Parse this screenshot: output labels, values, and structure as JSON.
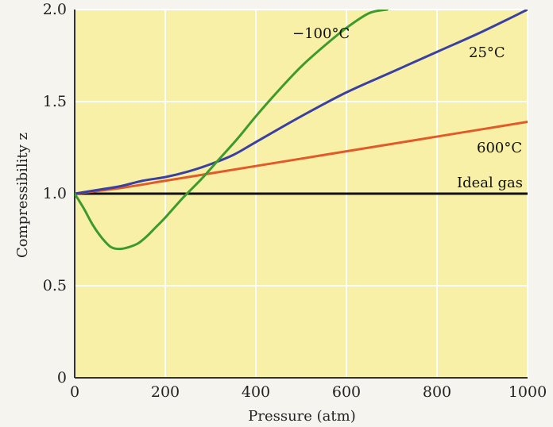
{
  "chart_data": {
    "type": "line",
    "xlabel": "Pressure (atm)",
    "ylabel": "Compressibility z",
    "xlim": [
      0,
      1000
    ],
    "ylim": [
      0,
      2.0
    ],
    "x_ticks": [
      0,
      200,
      400,
      600,
      800,
      1000
    ],
    "x_tick_labels": [
      "0",
      "200",
      "400",
      "600",
      "800",
      "1000"
    ],
    "y_ticks": [
      0,
      0.5,
      1.0,
      1.5,
      2.0
    ],
    "y_tick_labels": [
      "0",
      "0.5",
      "1.0",
      "1.5",
      "2.0"
    ],
    "grid": true,
    "series": [
      {
        "name": "Ideal gas",
        "color": "#111111",
        "x": [
          0,
          1000
        ],
        "y": [
          1.0,
          1.0
        ]
      },
      {
        "name": "600°C",
        "color": "#e25a2a",
        "x": [
          0,
          100,
          200,
          300,
          400,
          500,
          600,
          700,
          800,
          900,
          1000
        ],
        "y": [
          1.0,
          1.03,
          1.07,
          1.11,
          1.15,
          1.19,
          1.23,
          1.27,
          1.31,
          1.35,
          1.39
        ]
      },
      {
        "name": "25°C",
        "color": "#3a3fa3",
        "x": [
          0,
          50,
          100,
          150,
          200,
          250,
          300,
          350,
          400,
          500,
          600,
          700,
          800,
          900,
          1000
        ],
        "y": [
          1.0,
          1.02,
          1.04,
          1.07,
          1.09,
          1.12,
          1.16,
          1.21,
          1.28,
          1.42,
          1.55,
          1.66,
          1.77,
          1.88,
          2.0
        ]
      },
      {
        "name": "−100°C",
        "color": "#3f9a2c",
        "x": [
          0,
          20,
          40,
          60,
          80,
          100,
          120,
          140,
          160,
          180,
          200,
          240,
          280,
          320,
          360,
          400,
          450,
          500,
          550,
          600,
          650,
          690
        ],
        "y": [
          1.0,
          0.92,
          0.83,
          0.76,
          0.71,
          0.7,
          0.71,
          0.73,
          0.77,
          0.82,
          0.87,
          0.98,
          1.08,
          1.19,
          1.3,
          1.42,
          1.56,
          1.69,
          1.8,
          1.9,
          1.98,
          2.0
        ]
      }
    ]
  },
  "colors": {
    "panel_background": "#f7f0a6",
    "outer_background": "#f6f4ef",
    "grid": "#ffffff"
  }
}
